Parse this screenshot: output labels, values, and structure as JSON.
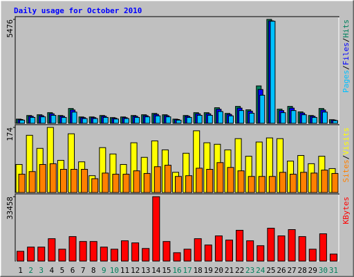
{
  "chart_data": [
    {
      "type": "bar",
      "title": "Daily usage for October 2010",
      "ylim": [
        0,
        5476
      ],
      "yticks": [
        5476
      ],
      "legend_separator": "/",
      "series": [
        {
          "name": "Hits",
          "color": "#00805c",
          "values": [
            220,
            410,
            450,
            560,
            410,
            780,
            335,
            335,
            410,
            300,
            335,
            410,
            450,
            520,
            450,
            220,
            410,
            560,
            560,
            820,
            520,
            890,
            710,
            1970,
            5476,
            745,
            890,
            600,
            410,
            780,
            190
          ]
        },
        {
          "name": "Files",
          "color": "#0000ff",
          "values": [
            200,
            370,
            400,
            500,
            370,
            700,
            300,
            300,
            370,
            270,
            300,
            370,
            400,
            470,
            400,
            200,
            370,
            500,
            500,
            740,
            470,
            800,
            640,
            1780,
            5400,
            670,
            800,
            540,
            370,
            700,
            170
          ]
        },
        {
          "name": "Pages",
          "color": "#00c0ff",
          "values": [
            165,
            310,
            340,
            420,
            310,
            590,
            250,
            250,
            310,
            225,
            250,
            310,
            340,
            390,
            340,
            165,
            310,
            420,
            420,
            620,
            390,
            670,
            530,
            1480,
            5380,
            560,
            670,
            450,
            310,
            590,
            140
          ]
        }
      ]
    },
    {
      "type": "bar",
      "ylim": [
        0,
        174
      ],
      "yticks": [
        174
      ],
      "legend_separator": "/",
      "series": [
        {
          "name": "Visits",
          "color": "#ffff00",
          "values": [
            75,
            153,
            118,
            174,
            86,
            157,
            82,
            45,
            120,
            103,
            75,
            133,
            94,
            138,
            114,
            54,
            105,
            165,
            133,
            129,
            114,
            144,
            97,
            135,
            146,
            144,
            84,
            99,
            77,
            97,
            64
          ]
        },
        {
          "name": "Sites",
          "color": "#ff8000",
          "values": [
            49,
            56,
            75,
            77,
            62,
            62,
            62,
            37,
            52,
            49,
            49,
            58,
            51,
            69,
            73,
            43,
            45,
            65,
            62,
            80,
            67,
            58,
            43,
            43,
            43,
            54,
            49,
            54,
            52,
            60,
            51
          ]
        }
      ]
    },
    {
      "type": "bar",
      "ylim": [
        0,
        33458
      ],
      "yticks": [
        33458
      ],
      "categories": [
        "1",
        "2",
        "3",
        "4",
        "5",
        "6",
        "7",
        "8",
        "9",
        "10",
        "11",
        "12",
        "13",
        "14",
        "15",
        "16",
        "17",
        "18",
        "19",
        "20",
        "21",
        "22",
        "23",
        "24",
        "25",
        "26",
        "27",
        "28",
        "29",
        "30",
        "31"
      ],
      "category_colors": [
        "#000000",
        "#00805c",
        "#00805c",
        "#000000",
        "#000000",
        "#000000",
        "#000000",
        "#000000",
        "#00805c",
        "#00805c",
        "#000000",
        "#000000",
        "#000000",
        "#000000",
        "#000000",
        "#00805c",
        "#00805c",
        "#000000",
        "#000000",
        "#000000",
        "#000000",
        "#000000",
        "#00805c",
        "#00805c",
        "#000000",
        "#000000",
        "#000000",
        "#000000",
        "#000000",
        "#00805c",
        "#00805c"
      ],
      "series": [
        {
          "name": "KBytes",
          "color": "#ff0000",
          "values": [
            5090,
            7270,
            7270,
            11640,
            6180,
            12730,
            10180,
            10180,
            7270,
            6180,
            10550,
            9460,
            6550,
            33458,
            10180,
            4360,
            6180,
            11640,
            8360,
            13090,
            10910,
            16000,
            10550,
            8000,
            17090,
            13090,
            16360,
            12730,
            6180,
            14180,
            3640
          ]
        }
      ]
    }
  ]
}
